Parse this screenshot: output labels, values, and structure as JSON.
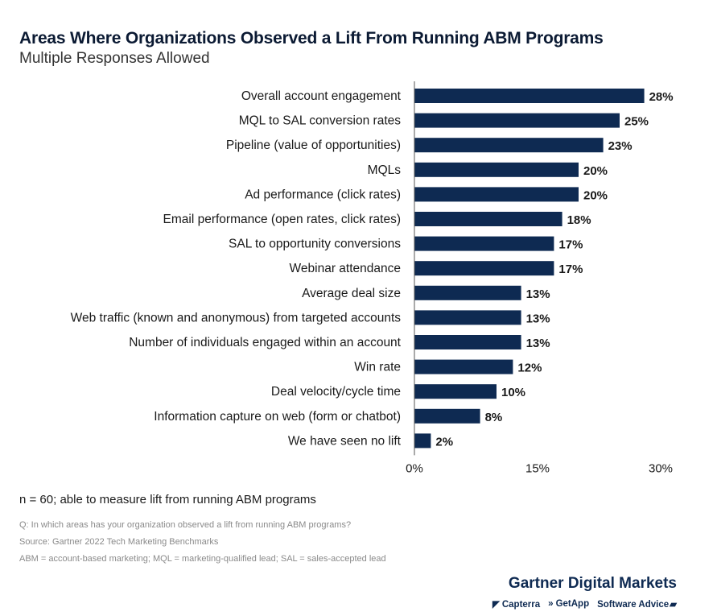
{
  "header": {
    "title": "Areas Where Organizations Observed a Lift From Running ABM Programs",
    "subtitle": "Multiple Responses Allowed"
  },
  "chart_data": {
    "type": "bar",
    "orientation": "horizontal",
    "title": "Areas Where Organizations Observed a Lift From Running ABM Programs",
    "subtitle": "Multiple Responses Allowed",
    "categories": [
      "Overall account engagement",
      "MQL to SAL conversion rates",
      "Pipeline (value of opportunities)",
      "MQLs",
      "Ad performance (click rates)",
      "Email performance (open rates, click rates)",
      "SAL to opportunity conversions",
      "Webinar attendance",
      "Average deal size",
      "Web traffic (known and anonymous) from targeted accounts",
      "Number of individuals engaged within an account",
      "Win rate",
      "Deal velocity/cycle time",
      "Information capture on web (form or chatbot)",
      "We have seen no lift"
    ],
    "values": [
      28,
      25,
      23,
      20,
      20,
      18,
      17,
      17,
      13,
      13,
      13,
      12,
      10,
      8,
      2
    ],
    "value_labels": [
      "28%",
      "25%",
      "23%",
      "20%",
      "20%",
      "18%",
      "17%",
      "17%",
      "13%",
      "13%",
      "13%",
      "12%",
      "10%",
      "8%",
      "2%"
    ],
    "xlim": [
      0,
      30
    ],
    "x_ticks": [
      "0%",
      "15%",
      "30%"
    ],
    "bar_color": "#0e2a52",
    "grid": false
  },
  "footer": {
    "note": "n = 60; able to measure lift from running ABM programs",
    "question": "Q: In which areas has your organization observed a lift from running ABM programs?",
    "source": "Source: Gartner 2022 Tech Marketing Benchmarks",
    "abbreviations": "ABM = account-based marketing; MQL = marketing-qualified lead; SAL = sales-accepted lead"
  },
  "branding": {
    "main": "Gartner Digital Markets",
    "capterra": "Capterra",
    "getapp": "GetApp",
    "software_advice": "Software Advice",
    "color": "#0e2a52"
  }
}
